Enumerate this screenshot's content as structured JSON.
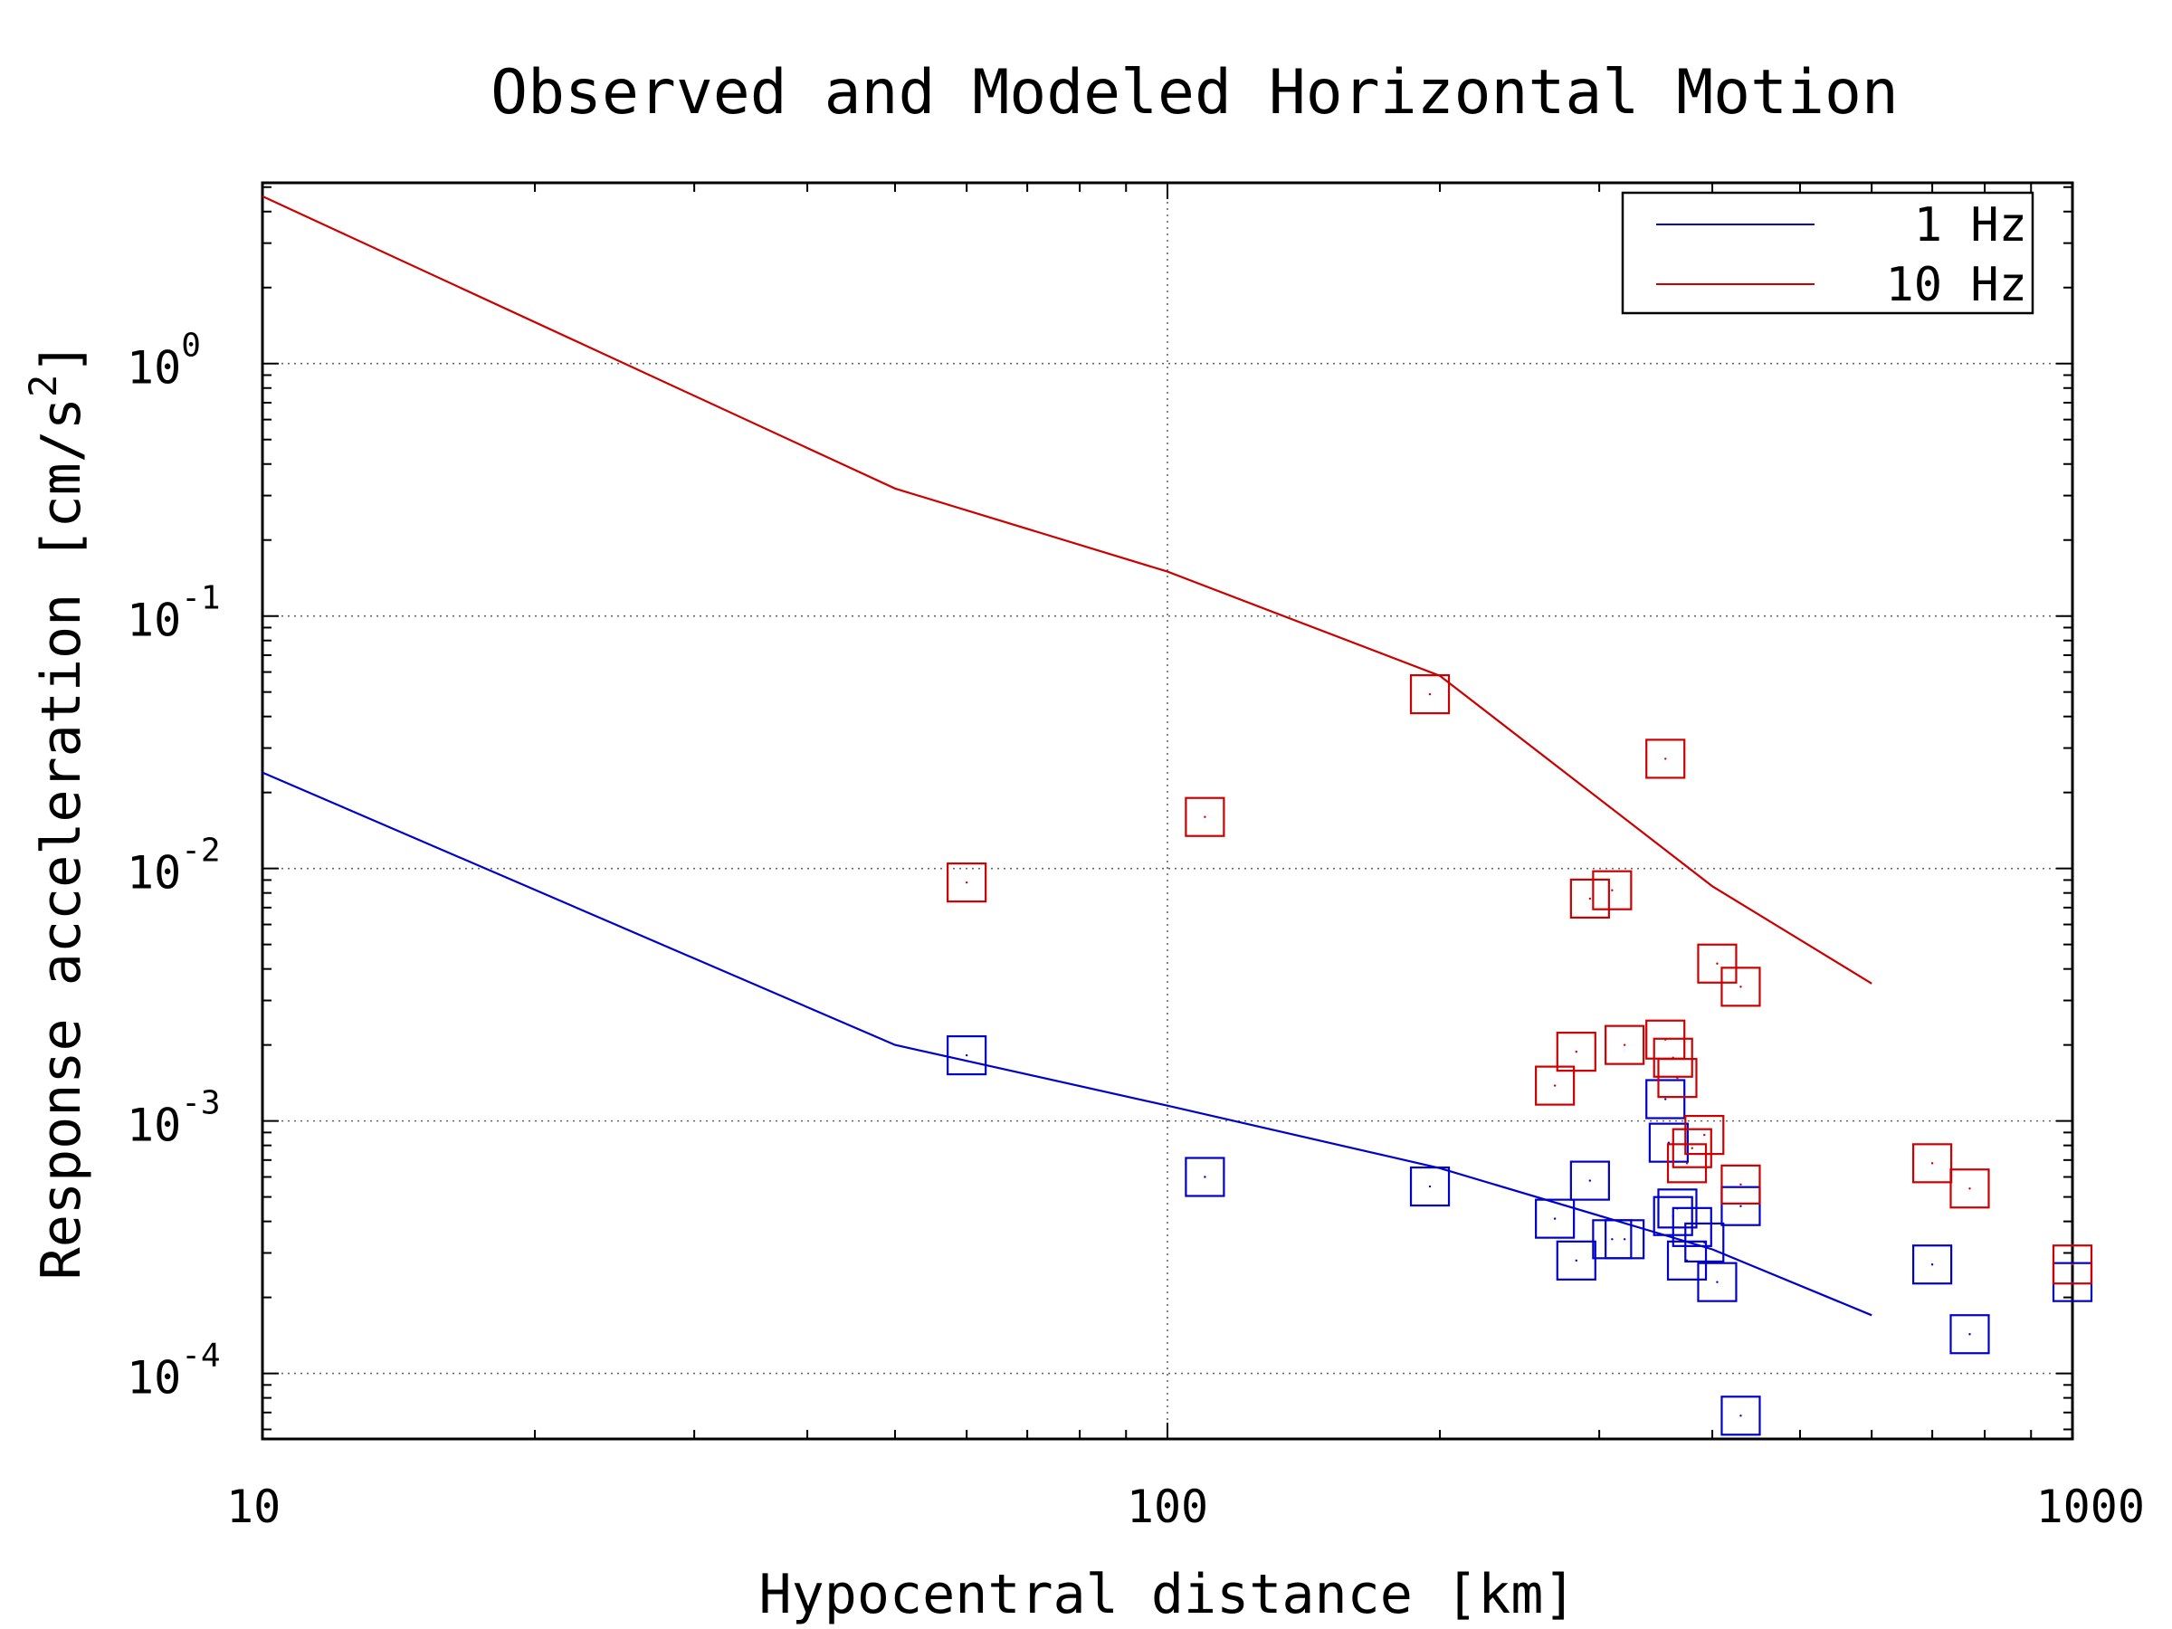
{
  "chart_data": {
    "type": "line",
    "title": "Observed and Modeled Horizontal Motion",
    "xlabel": "Hypocentral distance [km]",
    "ylabel_text": "Response acceleration [cm/s",
    "ylabel_sup": "2",
    "ylabel_close": "]",
    "xscale": "log",
    "yscale": "log",
    "xlim": [
      10,
      1000
    ],
    "ylim": [
      5.5e-05,
      5.2
    ],
    "x_ticks": [
      {
        "value": 10,
        "label": "10"
      },
      {
        "value": 100,
        "label": "100"
      },
      {
        "value": 1000,
        "label": "1000"
      }
    ],
    "y_ticks": [
      {
        "value": 0.0001,
        "base": "10",
        "exp": "-4"
      },
      {
        "value": 0.001,
        "base": "10",
        "exp": "-3"
      },
      {
        "value": 0.01,
        "base": "10",
        "exp": "-2"
      },
      {
        "value": 0.1,
        "base": "10",
        "exp": "-1"
      },
      {
        "value": 1,
        "base": "10",
        "exp": "0"
      }
    ],
    "grid": true,
    "legend_position": "top-right",
    "series": [
      {
        "name": "1 Hz",
        "color": "#0000cc",
        "model": {
          "x": [
            10,
            50,
            100,
            200,
            400,
            600
          ],
          "y": [
            0.024,
            0.002,
            0.00115,
            0.00065,
            0.00031,
            0.00017
          ]
        },
        "observed": {
          "x": [
            60,
            110,
            195,
            268,
            283,
            293,
            310,
            320,
            355,
            358,
            362,
            366,
            375,
            380,
            392,
            405,
            430,
            430,
            700,
            770,
            1000
          ],
          "y": [
            0.00182,
            0.0006,
            0.00055,
            0.00041,
            0.00028,
            0.00058,
            0.00034,
            0.00034,
            0.00122,
            0.00082,
            0.00042,
            0.00045,
            0.00028,
            0.00038,
            0.00033,
            0.00023,
            0.00046,
            6.8e-05,
            0.00027,
            0.000143,
            0.00023
          ]
        }
      },
      {
        "name": "10 Hz",
        "color": "#cc0000",
        "model": {
          "x": [
            10,
            50,
            100,
            200,
            400,
            600
          ],
          "y": [
            4.6,
            0.32,
            0.15,
            0.058,
            0.0085,
            0.0035
          ]
        },
        "observed": {
          "x": [
            60,
            110,
            195,
            268,
            283,
            293,
            310,
            320,
            355,
            355,
            362,
            366,
            375,
            380,
            392,
            405,
            430,
            430,
            700,
            770,
            1000
          ],
          "y": [
            0.0088,
            0.016,
            0.049,
            0.00138,
            0.00188,
            0.0076,
            0.0082,
            0.002,
            0.0272,
            0.0021,
            0.00178,
            0.00148,
            0.00068,
            0.00078,
            0.00088,
            0.0042,
            0.0034,
            0.00056,
            0.00068,
            0.00054,
            0.00027
          ]
        }
      }
    ]
  }
}
